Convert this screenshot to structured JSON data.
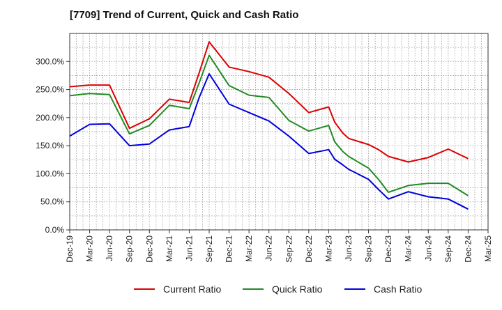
{
  "chart_data": {
    "type": "line",
    "title": "[7709]  Trend of Current, Quick and Cash Ratio",
    "xlabel": "",
    "ylabel": "",
    "ylim": [
      0,
      350
    ],
    "yticks": [
      0,
      50,
      100,
      150,
      200,
      250,
      300
    ],
    "ytick_labels": [
      "0.0%",
      "50.0%",
      "100.0%",
      "150.0%",
      "200.0%",
      "250.0%",
      "300.0%"
    ],
    "x_labels": [
      "Dec-19",
      "Mar-20",
      "Jun-20",
      "Sep-20",
      "Dec-20",
      "Mar-21",
      "Jun-21",
      "Sep-21",
      "Dec-21",
      "Mar-22",
      "Jun-22",
      "Sep-22",
      "Dec-22",
      "Mar-23",
      "Jun-23",
      "Sep-23",
      "Dec-23",
      "Mar-24",
      "Jun-24",
      "Sep-24",
      "Dec-24",
      "Mar-25"
    ],
    "x": [
      0,
      1,
      2,
      3,
      4,
      5,
      6,
      6.5,
      7,
      8,
      9,
      10,
      11,
      12,
      13,
      13.3,
      13.7,
      14,
      15,
      15.5,
      16,
      17,
      18,
      19,
      20
    ],
    "grid": true,
    "legend_position": "bottom",
    "series": [
      {
        "name": "Current Ratio",
        "color": "#dd0000",
        "values": [
          255,
          258,
          258,
          181,
          198,
          233,
          227,
          280,
          335,
          290,
          282,
          272,
          243,
          209,
          219,
          192,
          173,
          163,
          152,
          143,
          131,
          121,
          129,
          144,
          127
        ]
      },
      {
        "name": "Quick Ratio",
        "color": "#228b22",
        "values": [
          239,
          243,
          241,
          171,
          186,
          222,
          216,
          262,
          311,
          257,
          240,
          236,
          195,
          176,
          186,
          157,
          140,
          131,
          110,
          90,
          67,
          79,
          83,
          83,
          61
        ]
      },
      {
        "name": "Cash Ratio",
        "color": "#0000dd",
        "values": [
          167,
          188,
          189,
          150,
          153,
          178,
          184,
          236,
          278,
          224,
          209,
          194,
          167,
          136,
          143,
          126,
          116,
          108,
          90,
          72,
          55,
          68,
          59,
          55,
          37
        ]
      }
    ]
  }
}
